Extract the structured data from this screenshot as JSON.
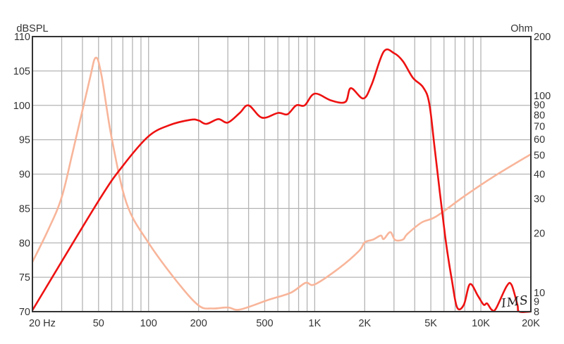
{
  "chart_data": {
    "type": "line",
    "title": "",
    "ylabel": "dBSPL",
    "y2label": "Ohm",
    "xlabel": "",
    "xscale": "log",
    "xlim": [
      20,
      20000
    ],
    "ylim": [
      70,
      110
    ],
    "y2scale": "log",
    "y2lim": [
      8,
      200
    ],
    "grid": true,
    "x_tick_labels": [
      {
        "value": 20,
        "label": "20  Hz"
      },
      {
        "value": 50,
        "label": "50"
      },
      {
        "value": 100,
        "label": "100"
      },
      {
        "value": 200,
        "label": "200"
      },
      {
        "value": 500,
        "label": "500"
      },
      {
        "value": 1000,
        "label": "1K"
      },
      {
        "value": 2000,
        "label": "2K"
      },
      {
        "value": 5000,
        "label": "5K"
      },
      {
        "value": 10000,
        "label": "10K"
      },
      {
        "value": 20000,
        "label": "20K"
      }
    ],
    "y_tick_labels": [
      "70",
      "75",
      "80",
      "85",
      "90",
      "95",
      "100",
      "105",
      "110"
    ],
    "y2_tick_labels": [
      "8",
      "9",
      "10",
      "20",
      "30",
      "40",
      "50",
      "60",
      "70",
      "80",
      "90",
      "100",
      "200"
    ],
    "colors": {
      "spl": "#ee1111",
      "impedance": "#f8b59a",
      "grid": "#b4b4b4",
      "axis": "#333333"
    },
    "series": [
      {
        "key": "spl",
        "axis": "left",
        "x": [
          20,
          50,
          70,
          100,
          133,
          179,
          200,
          223,
          263,
          300,
          354,
          400,
          482,
          603,
          685,
          774,
          870,
          1000,
          1260,
          1530,
          1650,
          1960,
          2200,
          2600,
          3000,
          3400,
          3900,
          4500,
          4900,
          5300,
          6100,
          6700,
          7200,
          7900,
          8600,
          9600,
          10400,
          10900,
          11600,
          12300,
          14300,
          15300,
          16600,
          17000,
          20000
        ],
        "y": [
          70.2,
          86.1,
          91.2,
          95.5,
          97.1,
          97.9,
          97.8,
          97.3,
          98.0,
          97.5,
          98.9,
          100.0,
          98.2,
          98.9,
          98.7,
          100.0,
          100.0,
          101.7,
          100.7,
          100.5,
          102.5,
          101.0,
          103.0,
          107.8,
          107.6,
          106.4,
          104.0,
          102.6,
          100.2,
          93.3,
          80.9,
          74.5,
          70.6,
          71.0,
          74.0,
          72.3,
          71.0,
          71.2,
          70.3,
          70.4,
          73.7,
          73.9,
          71.0,
          70.0,
          70.0
        ]
      },
      {
        "key": "impedance",
        "axis": "right",
        "x": [
          20,
          25,
          30,
          35,
          44,
          48,
          52,
          60,
          74,
          100,
          148,
          200,
          240,
          300,
          355,
          530,
          720,
          880,
          1000,
          1400,
          1850,
          2000,
          2250,
          2500,
          2600,
          2850,
          3050,
          3400,
          3600,
          4400,
          5400,
          8000,
          11800,
          20000
        ],
        "y": [
          14.3,
          21,
          30.5,
          52,
          119,
          156,
          128,
          61,
          28.2,
          17.9,
          11.4,
          8.6,
          8.3,
          8.4,
          8.2,
          9.2,
          10,
          11.2,
          11,
          13.3,
          16.3,
          18,
          18.6,
          19.5,
          18.7,
          20.3,
          18.5,
          18.6,
          19.8,
          22.7,
          24.4,
          31,
          38.6,
          50.5
        ]
      }
    ]
  },
  "watermark": "IMS"
}
